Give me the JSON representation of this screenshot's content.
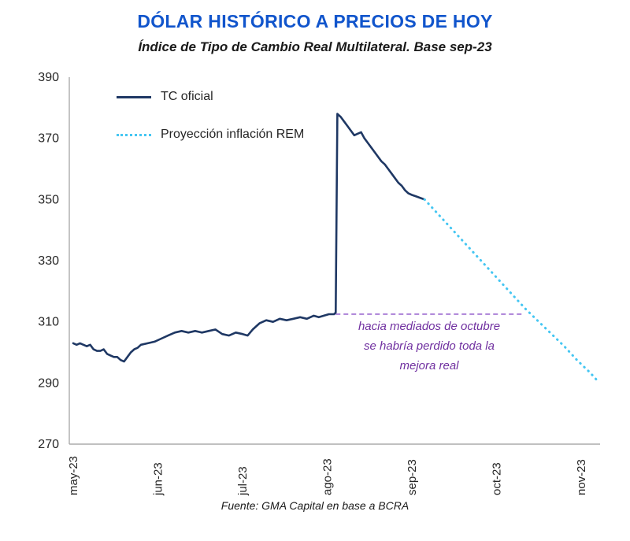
{
  "header": {
    "title": "DÓLAR HISTÓRICO A PRECIOS DE HOY",
    "subtitle": "Índice de Tipo de Cambio Real Multilateral. Base sep-23"
  },
  "footer": {
    "source": "Fuente: GMA Capital en base a BCRA"
  },
  "colors": {
    "title_blue": "#1155CC",
    "tc_oficial_navy": "#1F3864",
    "projection_cyan": "#45C6F2",
    "annotation_purple": "#7030A0",
    "reference_dash_purple": "#A97FD6",
    "axis_gray": "#ABABAB"
  },
  "chart_data": {
    "type": "line",
    "title": "DÓLAR HISTÓRICO A PRECIOS DE HOY",
    "subtitle": "Índice de Tipo de Cambio Real Multilateral. Base sep-23",
    "xlabel": "",
    "ylabel": "",
    "ylim": [
      270,
      390
    ],
    "yticks": [
      390,
      370,
      350,
      330,
      310,
      290,
      270
    ],
    "x_unit": "months from may-23 (0=may-23 ... 6=nov-23)",
    "x_categories": [
      "may-23",
      "jun-23",
      "jul-23",
      "ago-23",
      "sep-23",
      "oct-23",
      "nov-23"
    ],
    "grid": false,
    "legend_position": "top-left inside plot",
    "series": [
      {
        "name": "TC oficial",
        "color": "#1F3864",
        "style": "solid",
        "points": [
          [
            0.0,
            303
          ],
          [
            0.04,
            302.5
          ],
          [
            0.08,
            303
          ],
          [
            0.12,
            302.5
          ],
          [
            0.16,
            302
          ],
          [
            0.2,
            302.5
          ],
          [
            0.24,
            301
          ],
          [
            0.28,
            300.5
          ],
          [
            0.32,
            300.5
          ],
          [
            0.36,
            301
          ],
          [
            0.4,
            299.5
          ],
          [
            0.44,
            299
          ],
          [
            0.48,
            298.5
          ],
          [
            0.52,
            298.5
          ],
          [
            0.56,
            297.5
          ],
          [
            0.6,
            297
          ],
          [
            0.64,
            298.5
          ],
          [
            0.68,
            300
          ],
          [
            0.72,
            301
          ],
          [
            0.76,
            301.5
          ],
          [
            0.8,
            302.5
          ],
          [
            0.88,
            303
          ],
          [
            0.96,
            303.5
          ],
          [
            1.04,
            304.5
          ],
          [
            1.12,
            305.5
          ],
          [
            1.2,
            306.5
          ],
          [
            1.28,
            307
          ],
          [
            1.36,
            306.5
          ],
          [
            1.44,
            307
          ],
          [
            1.52,
            306.5
          ],
          [
            1.6,
            307
          ],
          [
            1.68,
            307.5
          ],
          [
            1.76,
            306
          ],
          [
            1.84,
            305.5
          ],
          [
            1.92,
            306.5
          ],
          [
            2.0,
            306
          ],
          [
            2.06,
            305.5
          ],
          [
            2.12,
            307.5
          ],
          [
            2.2,
            309.5
          ],
          [
            2.28,
            310.5
          ],
          [
            2.36,
            310
          ],
          [
            2.44,
            311
          ],
          [
            2.52,
            310.5
          ],
          [
            2.6,
            311
          ],
          [
            2.68,
            311.5
          ],
          [
            2.76,
            311
          ],
          [
            2.84,
            312
          ],
          [
            2.9,
            311.5
          ],
          [
            2.96,
            312
          ],
          [
            3.02,
            312.5
          ],
          [
            3.08,
            312.5
          ],
          [
            3.1,
            313
          ],
          [
            3.12,
            378
          ],
          [
            3.16,
            377
          ],
          [
            3.2,
            375.5
          ],
          [
            3.24,
            374
          ],
          [
            3.28,
            372.5
          ],
          [
            3.32,
            371
          ],
          [
            3.36,
            371.5
          ],
          [
            3.4,
            372
          ],
          [
            3.44,
            370
          ],
          [
            3.48,
            368.5
          ],
          [
            3.52,
            367
          ],
          [
            3.56,
            365.5
          ],
          [
            3.6,
            364
          ],
          [
            3.64,
            362.5
          ],
          [
            3.68,
            361.5
          ],
          [
            3.72,
            360
          ],
          [
            3.76,
            358.5
          ],
          [
            3.8,
            357
          ],
          [
            3.84,
            355.5
          ],
          [
            3.88,
            354.5
          ],
          [
            3.92,
            353
          ],
          [
            3.96,
            352
          ],
          [
            4.0,
            351.5
          ],
          [
            4.05,
            351
          ],
          [
            4.1,
            350.5
          ],
          [
            4.15,
            350
          ]
        ]
      },
      {
        "name": "Proyección inflación REM",
        "color": "#45C6F2",
        "style": "dotted",
        "points": [
          [
            4.15,
            350
          ],
          [
            4.3,
            345.5
          ],
          [
            4.45,
            341
          ],
          [
            4.6,
            336.5
          ],
          [
            4.75,
            332
          ],
          [
            4.9,
            327.5
          ],
          [
            5.05,
            323
          ],
          [
            5.2,
            318.5
          ],
          [
            5.35,
            314
          ],
          [
            5.5,
            310
          ],
          [
            5.65,
            306
          ],
          [
            5.8,
            302
          ],
          [
            5.95,
            297.5
          ],
          [
            6.1,
            293.5
          ],
          [
            6.2,
            290.5
          ]
        ]
      }
    ],
    "reference_line": {
      "y": 312.5,
      "x_start": 3.1,
      "x_end": 5.3,
      "style": "dashed",
      "color": "#A97FD6",
      "meaning": "level of the real exchange rate just before the August devaluation"
    },
    "annotation": {
      "lines": [
        "hacia mediados de octubre",
        "se habría perdido toda la",
        "mejora real"
      ],
      "color": "#7030A0"
    }
  }
}
